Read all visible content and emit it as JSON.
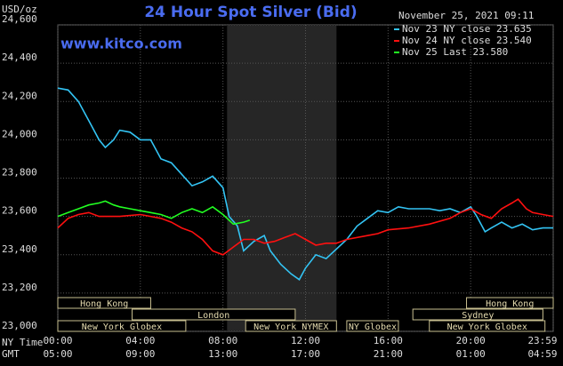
{
  "chart_data": {
    "type": "line",
    "title": "24 Hour Spot Silver (Bid)",
    "y_unit": "USD/oz",
    "website": "www.kitco.com",
    "timestamp": "November 25, 2021 09:11",
    "x_axis_label": "NY Time",
    "x2_axis_label": "GMT",
    "xlim": [
      0,
      24
    ],
    "xticks": [
      {
        "value": 0,
        "label": "00:00"
      },
      {
        "value": 4,
        "label": "04:00"
      },
      {
        "value": 8,
        "label": "08:00"
      },
      {
        "value": 12,
        "label": "12:00"
      },
      {
        "value": 16,
        "label": "16:00"
      },
      {
        "value": 20,
        "label": "20:00"
      },
      {
        "value": 24,
        "label": "23:59"
      }
    ],
    "xticks_gmt": [
      "05:00",
      "09:00",
      "13:00",
      "17:00",
      "21:00",
      "01:00",
      "04:59"
    ],
    "ylim": [
      23000,
      24600
    ],
    "yticks": [
      {
        "value": 23000,
        "label": "23,000"
      },
      {
        "value": 23200,
        "label": "23,200"
      },
      {
        "value": 23400,
        "label": "23,400"
      },
      {
        "value": 23600,
        "label": "23,600"
      },
      {
        "value": 23800,
        "label": "23,800"
      },
      {
        "value": 24000,
        "label": "24,000"
      },
      {
        "value": 24200,
        "label": "24,200"
      },
      {
        "value": 24400,
        "label": "24,400"
      },
      {
        "value": 24600,
        "label": "24,600"
      }
    ],
    "grid": true,
    "highlight": [
      8.2,
      13.5
    ],
    "series": [
      {
        "name": "Nov 23 NY close 23.635",
        "color": "#33c4f4",
        "x": [
          0,
          0.5,
          1,
          1.5,
          2,
          2.3,
          2.7,
          3,
          3.5,
          4,
          4.5,
          5,
          5.5,
          6,
          6.5,
          7,
          7.5,
          8,
          8.3,
          8.7,
          9,
          9.5,
          10,
          10.3,
          10.8,
          11.3,
          11.7,
          12,
          12.5,
          13,
          13.5,
          14,
          14.5,
          15,
          15.5,
          16,
          16.5,
          17,
          18,
          18.5,
          19,
          19.5,
          20,
          20.3,
          20.7,
          21,
          21.5,
          22,
          22.5,
          23,
          23.5,
          24
        ],
        "values": [
          24270,
          24260,
          24200,
          24100,
          24000,
          23960,
          24000,
          24050,
          24040,
          24000,
          24000,
          23900,
          23880,
          23820,
          23760,
          23780,
          23810,
          23750,
          23600,
          23550,
          23420,
          23470,
          23500,
          23420,
          23350,
          23300,
          23270,
          23330,
          23400,
          23380,
          23430,
          23480,
          23550,
          23590,
          23630,
          23620,
          23650,
          23640,
          23640,
          23630,
          23640,
          23620,
          23650,
          23600,
          23520,
          23540,
          23570,
          23540,
          23560,
          23530,
          23540,
          23540
        ]
      },
      {
        "name": "Nov 24 NY close 23.540",
        "color": "#ff1010",
        "x": [
          0,
          0.5,
          1,
          1.5,
          2,
          3,
          4,
          4.5,
          5,
          5.5,
          6,
          6.5,
          7,
          7.5,
          8,
          8.5,
          9,
          9.5,
          10,
          10.5,
          11,
          11.5,
          12,
          12.5,
          13,
          13.5,
          14,
          15,
          15.5,
          16,
          17,
          18,
          19,
          19.5,
          20,
          20.5,
          21,
          21.5,
          22,
          22.3,
          22.7,
          23,
          23.5,
          24
        ],
        "values": [
          23540,
          23590,
          23610,
          23620,
          23600,
          23600,
          23610,
          23600,
          23590,
          23570,
          23540,
          23520,
          23480,
          23420,
          23400,
          23440,
          23480,
          23480,
          23460,
          23470,
          23490,
          23510,
          23480,
          23450,
          23460,
          23460,
          23480,
          23500,
          23510,
          23530,
          23540,
          23560,
          23590,
          23620,
          23640,
          23610,
          23590,
          23640,
          23670,
          23690,
          23640,
          23620,
          23610,
          23600
        ]
      },
      {
        "name": "Nov 25 Last 23.580",
        "color": "#22ff22",
        "x": [
          0,
          0.5,
          1,
          1.5,
          2,
          2.3,
          2.7,
          3,
          3.5,
          4,
          4.5,
          5,
          5.5,
          6,
          6.5,
          7,
          7.5,
          8,
          8.5,
          9,
          9.3
        ],
        "values": [
          23600,
          23620,
          23640,
          23660,
          23670,
          23680,
          23660,
          23650,
          23640,
          23630,
          23620,
          23610,
          23590,
          23620,
          23640,
          23620,
          23650,
          23610,
          23560,
          23570,
          23580
        ]
      }
    ],
    "sessions": [
      {
        "label": "Hong Kong",
        "row": 0,
        "start": 0,
        "end": 4.5
      },
      {
        "label": "Hong Kong",
        "row": 0,
        "start": 19.8,
        "end": 24
      },
      {
        "label": "London",
        "row": 1,
        "start": 3.6,
        "end": 11.5
      },
      {
        "label": "Sydney",
        "row": 1,
        "start": 17.2,
        "end": 23.5
      },
      {
        "label": "New York Globex",
        "row": 2,
        "start": 0,
        "end": 6.2
      },
      {
        "label": "New York NYMEX",
        "row": 2,
        "start": 9.1,
        "end": 13.5
      },
      {
        "label": "NY Globex",
        "row": 2,
        "start": 14,
        "end": 16.5
      },
      {
        "label": "New York Globex",
        "row": 2,
        "start": 18,
        "end": 23.6
      }
    ]
  }
}
